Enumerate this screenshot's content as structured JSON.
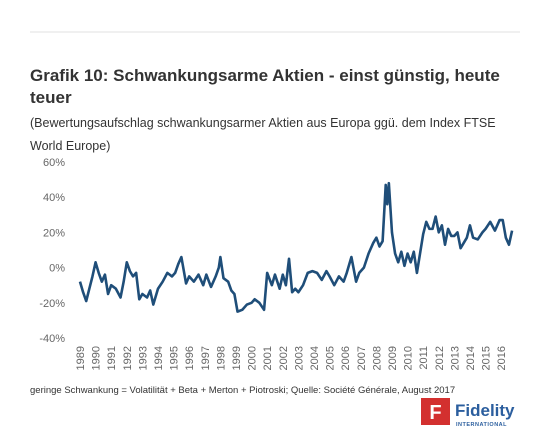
{
  "chart_data": {
    "type": "line",
    "title_lines": [
      "Grafik 10: Schwankungsarme Aktien - einst günstig, heute",
      "teuer"
    ],
    "subtitle_lines": [
      "(Bewertungsaufschlag schwankungsarmer Aktien aus Europa ggü. dem Index FTSE",
      "World Europe)"
    ],
    "footnote": "geringe Schwankung = Volatilität + Beta + Merton + Piotroski; Quelle: Société Générale, August 2017",
    "logo": {
      "name": "Fidelity",
      "sub": "INTERNATIONAL"
    },
    "color": "#1f4e79",
    "grid": false,
    "xlim": [
      1988.7,
      2016.9
    ],
    "xticks": [
      1989,
      1990,
      1991,
      1992,
      1993,
      1994,
      1995,
      1996,
      1997,
      1998,
      1999,
      2000,
      2001,
      2002,
      2003,
      2004,
      2005,
      2006,
      2007,
      2008,
      2009,
      2010,
      2011,
      2012,
      2013,
      2014,
      2015,
      2016
    ],
    "ylim": [
      -40,
      60
    ],
    "yticks": [
      {
        "value": -40,
        "label": "-40%"
      },
      {
        "value": -20,
        "label": "-20%"
      },
      {
        "value": 0,
        "label": "0%"
      },
      {
        "value": 20,
        "label": "20%"
      },
      {
        "value": 40,
        "label": "40%"
      },
      {
        "value": 60,
        "label": "60%"
      }
    ],
    "x": [
      1989.0,
      1989.2,
      1989.4,
      1989.6,
      1989.8,
      1990.0,
      1990.2,
      1990.4,
      1990.6,
      1990.8,
      1991.0,
      1991.3,
      1991.6,
      1991.8,
      1992.0,
      1992.2,
      1992.4,
      1992.6,
      1992.8,
      1993.0,
      1993.3,
      1993.5,
      1993.7,
      1994.0,
      1994.3,
      1994.6,
      1994.9,
      1995.1,
      1995.3,
      1995.5,
      1995.8,
      1996.0,
      1996.3,
      1996.6,
      1996.9,
      1997.1,
      1997.4,
      1997.7,
      1997.9,
      1998.0,
      1998.2,
      1998.5,
      1998.7,
      1998.9,
      1999.1,
      1999.4,
      1999.7,
      2000.0,
      2000.2,
      2000.5,
      2000.8,
      2001.0,
      2001.3,
      2001.5,
      2001.8,
      2002.0,
      2002.2,
      2002.4,
      2002.6,
      2002.8,
      2003.0,
      2003.3,
      2003.6,
      2003.9,
      2004.2,
      2004.5,
      2004.8,
      2005.0,
      2005.3,
      2005.6,
      2005.9,
      2006.1,
      2006.4,
      2006.7,
      2006.9,
      2007.2,
      2007.5,
      2007.8,
      2008.0,
      2008.2,
      2008.4,
      2008.6,
      2008.7,
      2008.8,
      2009.0,
      2009.2,
      2009.4,
      2009.6,
      2009.8,
      2010.0,
      2010.2,
      2010.4,
      2010.6,
      2010.8,
      2011.0,
      2011.2,
      2011.4,
      2011.6,
      2011.8,
      2012.0,
      2012.2,
      2012.4,
      2012.6,
      2012.8,
      2013.0,
      2013.2,
      2013.4,
      2013.6,
      2013.8,
      2014.0,
      2014.2,
      2014.5,
      2014.8,
      2015.0,
      2015.3,
      2015.6,
      2015.9,
      2016.1,
      2016.3,
      2016.5,
      2016.7
    ],
    "values": [
      -8,
      -14,
      -19,
      -12,
      -5,
      3,
      -3,
      -8,
      -4,
      -15,
      -10,
      -12,
      -17,
      -8,
      3,
      -2,
      -5,
      -3,
      -18,
      -15,
      -17,
      -13,
      -21,
      -12,
      -8,
      -3,
      -5,
      -3,
      2,
      6,
      -9,
      -5,
      -8,
      -4,
      -10,
      -4,
      -11,
      -5,
      0,
      6,
      -6,
      -8,
      -13,
      -15,
      -25,
      -24,
      -21,
      -20,
      -18,
      -20,
      -24,
      -3,
      -10,
      -4,
      -12,
      -4,
      -10,
      5,
      -14,
      -12,
      -14,
      -10,
      -3,
      -2,
      -3,
      -7,
      -2,
      -5,
      -10,
      -5,
      -8,
      -3,
      6,
      -8,
      -3,
      0,
      8,
      14,
      17,
      12,
      15,
      47,
      36,
      48,
      20,
      8,
      3,
      9,
      1,
      8,
      3,
      9,
      -3,
      8,
      19,
      26,
      22,
      22,
      29,
      20,
      24,
      13,
      22,
      18,
      18,
      20,
      11,
      14,
      17,
      24,
      17,
      16,
      20,
      22,
      26,
      21,
      27,
      27,
      17,
      13,
      21
    ]
  }
}
